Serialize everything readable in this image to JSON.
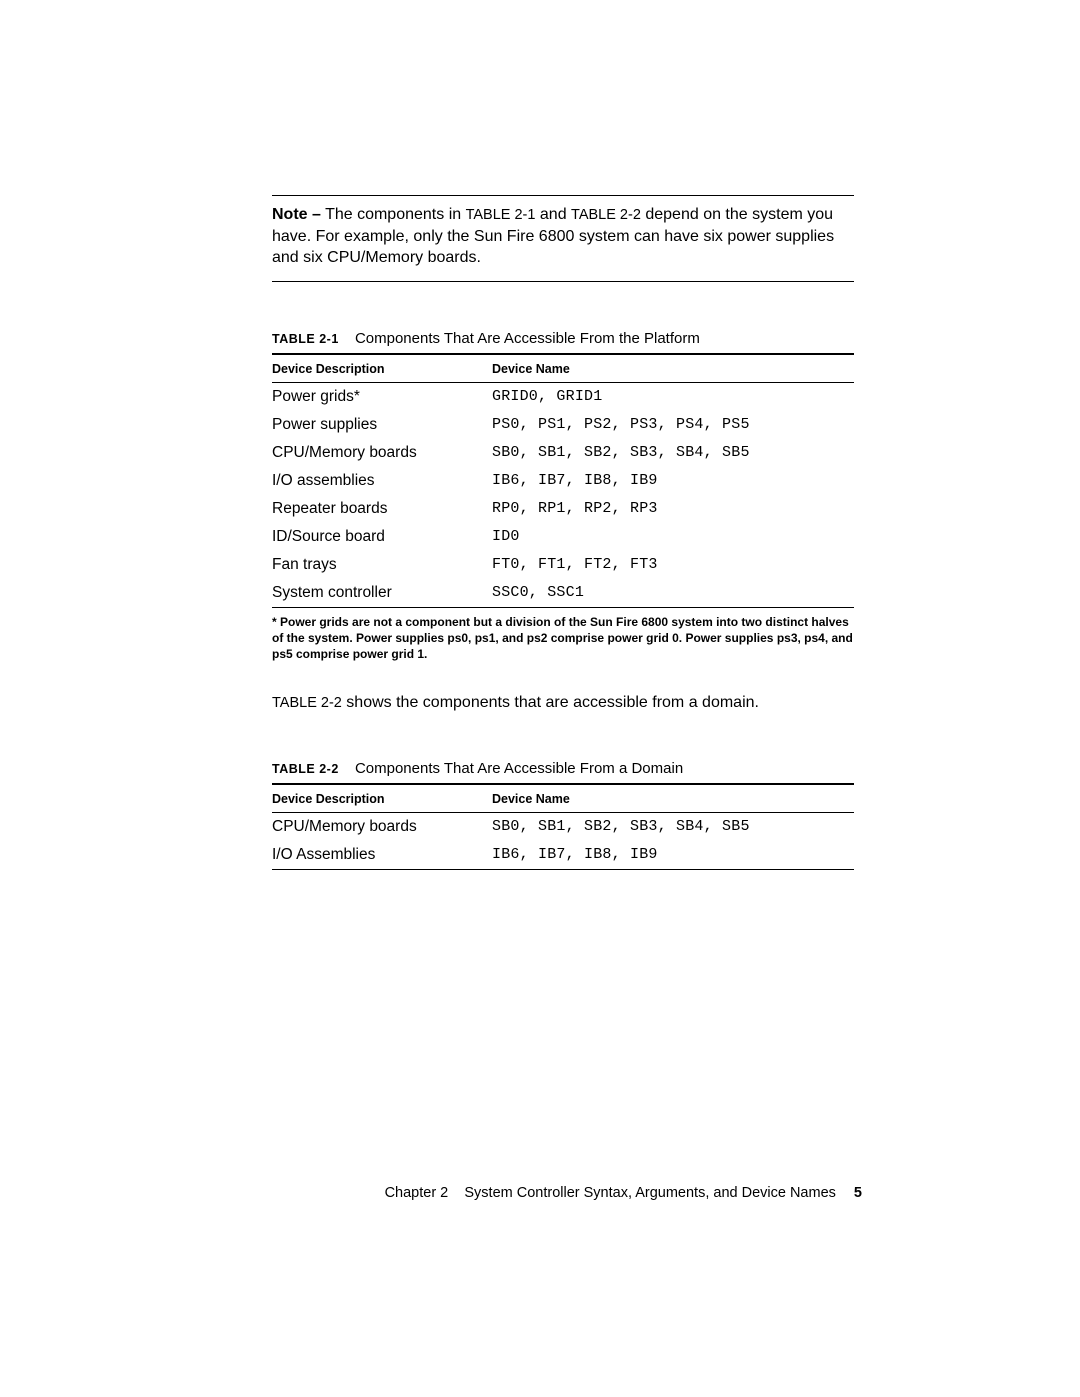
{
  "note": {
    "label": "Note –",
    "line1a": " The components in ",
    "ref1": "TABLE 2-1",
    "line1b": " and ",
    "ref2": "TABLE 2-2",
    "line1c": " depend on the system you have.",
    "line2": "For example, only the Sun Fire 6800 system can have six power supplies and six CPU/Memory boards."
  },
  "table1": {
    "label": "TABLE 2-1",
    "title": "Components That Are Accessible From the Platform",
    "headers": {
      "desc": "Device Description",
      "name": "Device Name"
    },
    "rows": [
      {
        "desc": "Power grids*",
        "name": "GRID0, GRID1"
      },
      {
        "desc": "Power supplies",
        "name": "PS0, PS1, PS2, PS3, PS4, PS5"
      },
      {
        "desc": "CPU/Memory boards",
        "name": "SB0, SB1, SB2, SB3, SB4, SB5"
      },
      {
        "desc": "I/O assemblies",
        "name": "IB6, IB7, IB8, IB9"
      },
      {
        "desc": "Repeater boards",
        "name": "RP0, RP1, RP2, RP3"
      },
      {
        "desc": "ID/Source board",
        "name": "ID0"
      },
      {
        "desc": "Fan trays",
        "name": "FT0, FT1, FT2, FT3"
      },
      {
        "desc": "System controller",
        "name": "SSC0, SSC1"
      }
    ],
    "footnote": "* Power grids are not a component but a division of the Sun Fire 6800 system into two distinct halves of the system. Power supplies ps0, ps1, and ps2 comprise power grid 0. Power supplies ps3, ps4, and ps5 comprise power grid 1."
  },
  "between": {
    "ref": "TABLE 2-2",
    "text": " shows the components that are accessible from a domain."
  },
  "table2": {
    "label": "TABLE 2-2",
    "title": "Components That Are Accessible From a Domain",
    "headers": {
      "desc": "Device Description",
      "name": "Device Name"
    },
    "rows": [
      {
        "desc": "CPU/Memory boards",
        "name": "SB0, SB1, SB2, SB3, SB4, SB5"
      },
      {
        "desc": "I/O Assemblies",
        "name": "IB6, IB7, IB8, IB9"
      }
    ]
  },
  "footer": {
    "chapter": "Chapter 2",
    "title": "System Controller Syntax, Arguments, and Device Names",
    "page": "5"
  }
}
